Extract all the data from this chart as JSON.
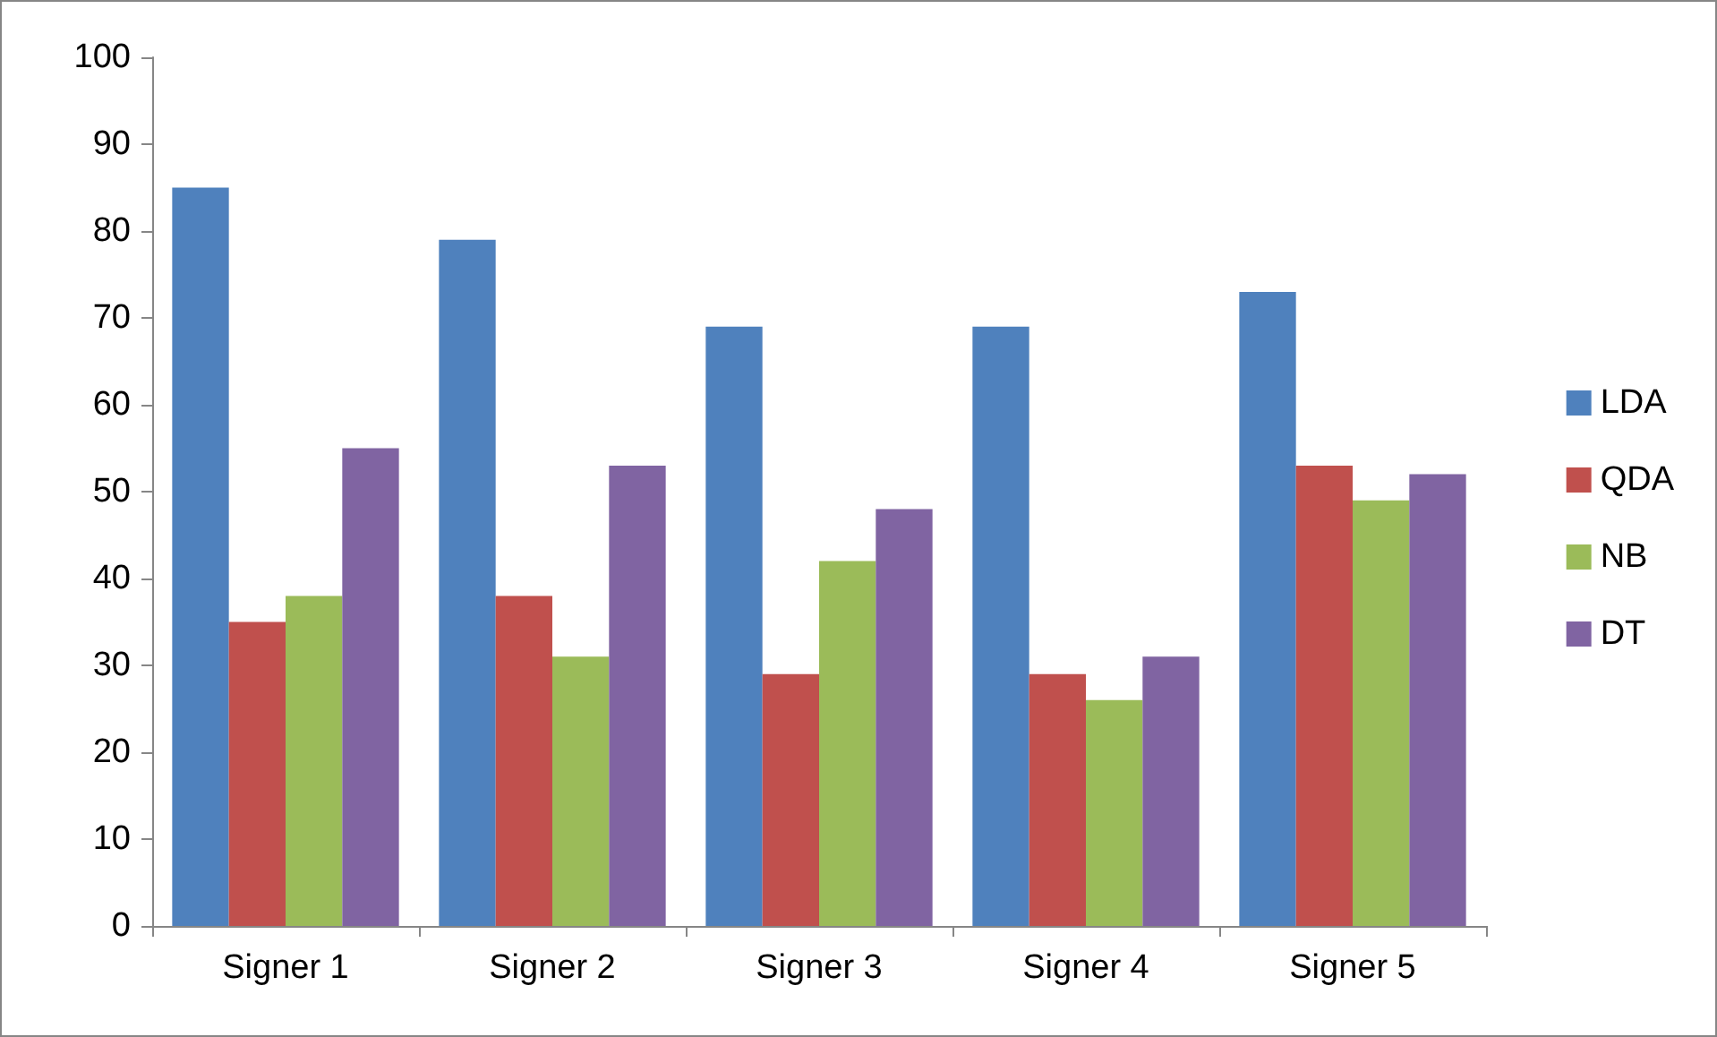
{
  "chart_data": {
    "type": "bar",
    "categories": [
      "Signer 1",
      "Signer 2",
      "Signer 3",
      "Signer 4",
      "Signer 5"
    ],
    "series": [
      {
        "name": "LDA",
        "color": "#4f81bd",
        "values": [
          85,
          79,
          69,
          69,
          73
        ]
      },
      {
        "name": "QDA",
        "color": "#c0504d",
        "values": [
          35,
          38,
          29,
          29,
          53
        ]
      },
      {
        "name": "NB",
        "color": "#9bbb59",
        "values": [
          38,
          31,
          42,
          26,
          49
        ]
      },
      {
        "name": "DT",
        "color": "#8064a2",
        "values": [
          55,
          53,
          48,
          31,
          52
        ]
      }
    ],
    "ylim": [
      0,
      100
    ],
    "yticks": [
      0,
      10,
      20,
      30,
      40,
      50,
      60,
      70,
      80,
      90,
      100
    ],
    "grid": false,
    "legend": "right"
  }
}
